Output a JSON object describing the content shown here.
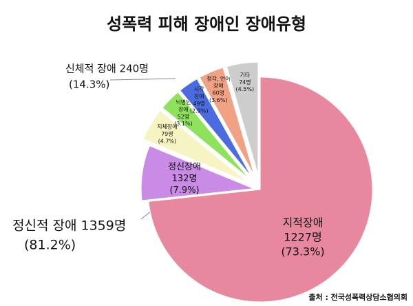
{
  "chart_data": {
    "type": "pie",
    "title": "성폭력 피해 장애인 장애유형",
    "categories": [
      [
        "지적장애"
      ],
      [
        "정신장애"
      ],
      [
        "지체장애"
      ],
      [
        "뇌병변",
        "장애"
      ],
      [
        "시각",
        "장애"
      ],
      [
        "청각, 언어",
        "장애"
      ],
      [
        "기타"
      ]
    ],
    "values": [
      73.3,
      7.9,
      4.7,
      3.1,
      2.9,
      3.6,
      4.5
    ],
    "value_labels": [
      "(73.3%)",
      "(7.9%)",
      "(4.7%)",
      "(3.1%)",
      "(2.9%)",
      "(3.6%)",
      "(4.5%)"
    ],
    "count_labels": [
      "1227명",
      "132명",
      "79명",
      "52명",
      "49명",
      "60명",
      "74명"
    ],
    "colors": [
      "#e8889f",
      "#c98be6",
      "#f6f4c2",
      "#8fe25c",
      "#4b6be0",
      "#f2a284",
      "#cdcdcd"
    ],
    "groups": [
      {
        "label": "신체적 장애 240명",
        "percent_label": "(14.3%)"
      },
      {
        "label": "정신적 장애 1359명",
        "percent_label": "(81.2%)"
      }
    ],
    "source": "출처 : 전국성폭력상담소협의회"
  }
}
